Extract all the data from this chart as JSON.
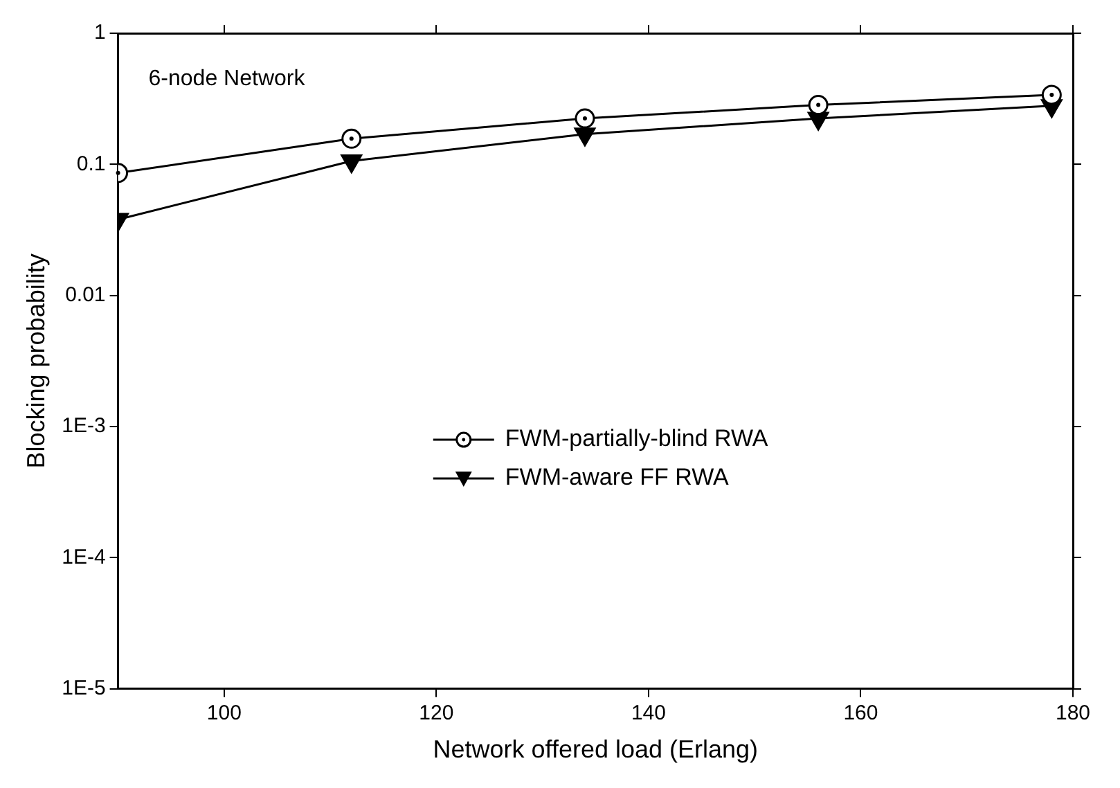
{
  "chart_data": {
    "type": "line",
    "title": "6-node Network",
    "xlabel": "Network offered load (Erlang)",
    "ylabel": "Blocking probability",
    "x": [
      90,
      112,
      134,
      156,
      178
    ],
    "series": [
      {
        "name": "FWM-partially-blind RWA",
        "color": "#000000",
        "marker": "circle",
        "values": [
          0.086,
          0.157,
          0.224,
          0.284,
          0.339
        ]
      },
      {
        "name": "FWM-aware FF RWA",
        "color": "#000000",
        "marker": "triangle",
        "values": [
          0.038,
          0.106,
          0.17,
          0.224,
          0.28
        ]
      }
    ],
    "xlim": [
      90,
      180
    ],
    "xticks": [
      100,
      120,
      140,
      160,
      180
    ],
    "ylim": [
      1e-05,
      1
    ],
    "yticks": [
      {
        "value": 1e-05,
        "label": "1E-5"
      },
      {
        "value": 0.0001,
        "label": "1E-4"
      },
      {
        "value": 0.001,
        "label": "1E-3"
      },
      0.01,
      0.1,
      1
    ],
    "log": "y",
    "grid": false,
    "legend": "center",
    "line_style": "solid"
  }
}
